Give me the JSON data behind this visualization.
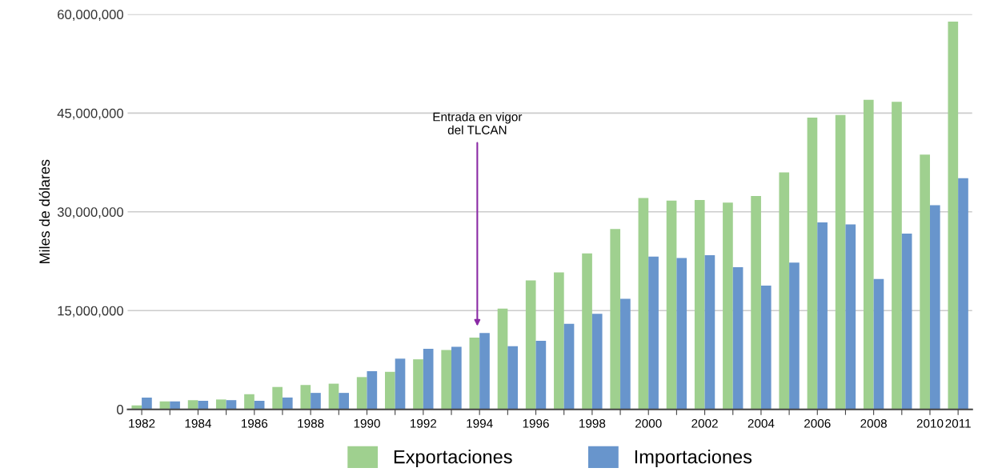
{
  "chart_data": {
    "type": "bar",
    "ylabel": "Miles de dólares",
    "categories": [
      "1982",
      null,
      "1984",
      null,
      "1986",
      null,
      "1988",
      null,
      "1990",
      null,
      "1992",
      null,
      "1994",
      null,
      "1996",
      null,
      "1998",
      null,
      "2000",
      null,
      "2002",
      null,
      "2004",
      null,
      "2006",
      null,
      "2008",
      null,
      "2010",
      "2011"
    ],
    "series": [
      {
        "name": "Exportaciones",
        "color": "#9fd08f",
        "values": [
          600000,
          1200000,
          1400000,
          1500000,
          2300000,
          3400000,
          3700000,
          3900000,
          4900000,
          5700000,
          7600000,
          9000000,
          10900000,
          15300000,
          19600000,
          20800000,
          23700000,
          27400000,
          32100000,
          31700000,
          31800000,
          31400000,
          32400000,
          36000000,
          44300000,
          44700000,
          47000000,
          46700000,
          38700000,
          58900000
        ]
      },
      {
        "name": "Importaciones",
        "color": "#6895cc",
        "values": [
          1800000,
          1200000,
          1300000,
          1400000,
          1300000,
          1800000,
          2500000,
          2500000,
          5800000,
          7700000,
          9200000,
          9500000,
          11600000,
          9600000,
          10400000,
          13000000,
          14500000,
          16800000,
          23200000,
          23000000,
          23400000,
          21600000,
          18800000,
          22300000,
          28400000,
          28100000,
          19800000,
          26700000,
          31000000,
          35100000
        ]
      }
    ],
    "ylim": [
      0,
      60000000
    ],
    "yticks": [
      {
        "value": 0,
        "label": "0"
      },
      {
        "value": 15000000,
        "label": "15,000,000"
      },
      {
        "value": 30000000,
        "label": "30,000,000"
      },
      {
        "value": 45000000,
        "label": "45,000,000"
      },
      {
        "value": 60000000,
        "label": "60,000,000"
      }
    ],
    "grid": "y",
    "legend": "bottom",
    "annotations": [
      "Entrada en vigor\ndel TLCAN"
    ]
  }
}
